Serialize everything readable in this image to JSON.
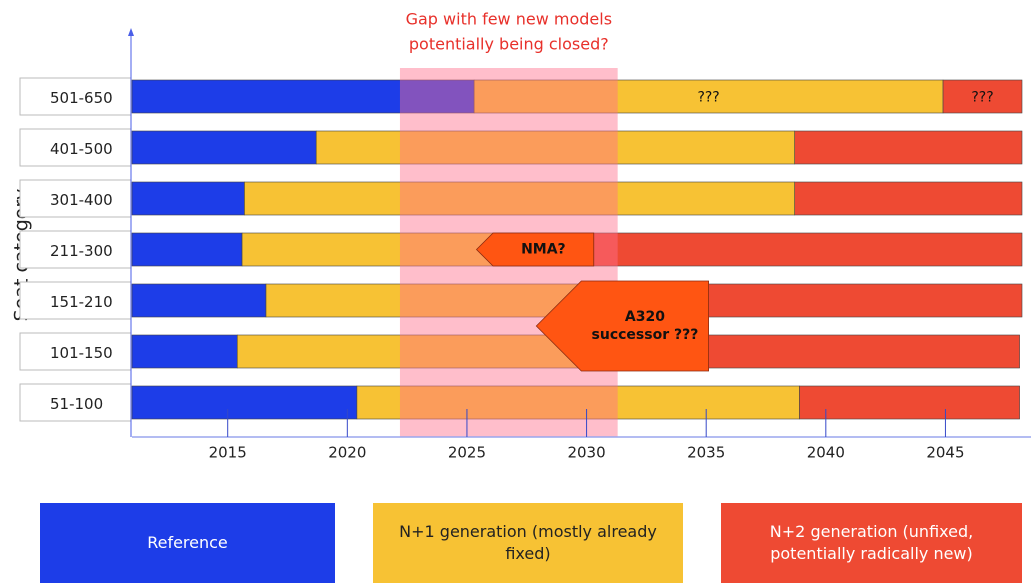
{
  "chart_data": {
    "type": "timeline",
    "y_axis_label": "Seat category",
    "categories": [
      "501-650",
      "401-500",
      "301-400",
      "211-300",
      "151-210",
      "101-150",
      "51-100"
    ],
    "xlim": [
      2011,
      2048.2
    ],
    "xticks": [
      2015,
      2020,
      2025,
      2030,
      2035,
      2040,
      2045
    ],
    "series": [
      {
        "name": "Reference",
        "color": "#1d3de8",
        "values": [
          2025.3,
          2018.7,
          2015.7,
          2015.6,
          2016.6,
          2015.4,
          2020.4
        ]
      },
      {
        "name": "N+1 generation (mostly already fixed)",
        "color": "#f7c234",
        "values": [
          2044.9,
          2038.7,
          2038.7,
          2030.3,
          2035.1,
          2035.0,
          2038.9
        ]
      },
      {
        "name": "N+2 generation (unfixed, potentially radically new)",
        "color": "#ee4a33",
        "values": [
          2048.2,
          2048.2,
          2048.2,
          2048.2,
          2048.2,
          2048.1,
          2048.1
        ]
      }
    ],
    "highlight": {
      "start": 2022.2,
      "end": 2031.3,
      "label": [
        "Gap with few new models",
        "potentially being closed?"
      ]
    },
    "segment_labels": [
      {
        "text": "???",
        "row": 0,
        "series": 1
      },
      {
        "text": "???",
        "row": 0,
        "series": 2
      }
    ],
    "annotations": [
      {
        "text": [
          "NMA?"
        ],
        "rows": [
          3
        ],
        "start": 2025.4,
        "end": 2030.3
      },
      {
        "text": [
          "A320",
          "successor ???"
        ],
        "rows": [
          4,
          5
        ],
        "start": 2027.9,
        "end": 2035.1
      }
    ]
  }
}
